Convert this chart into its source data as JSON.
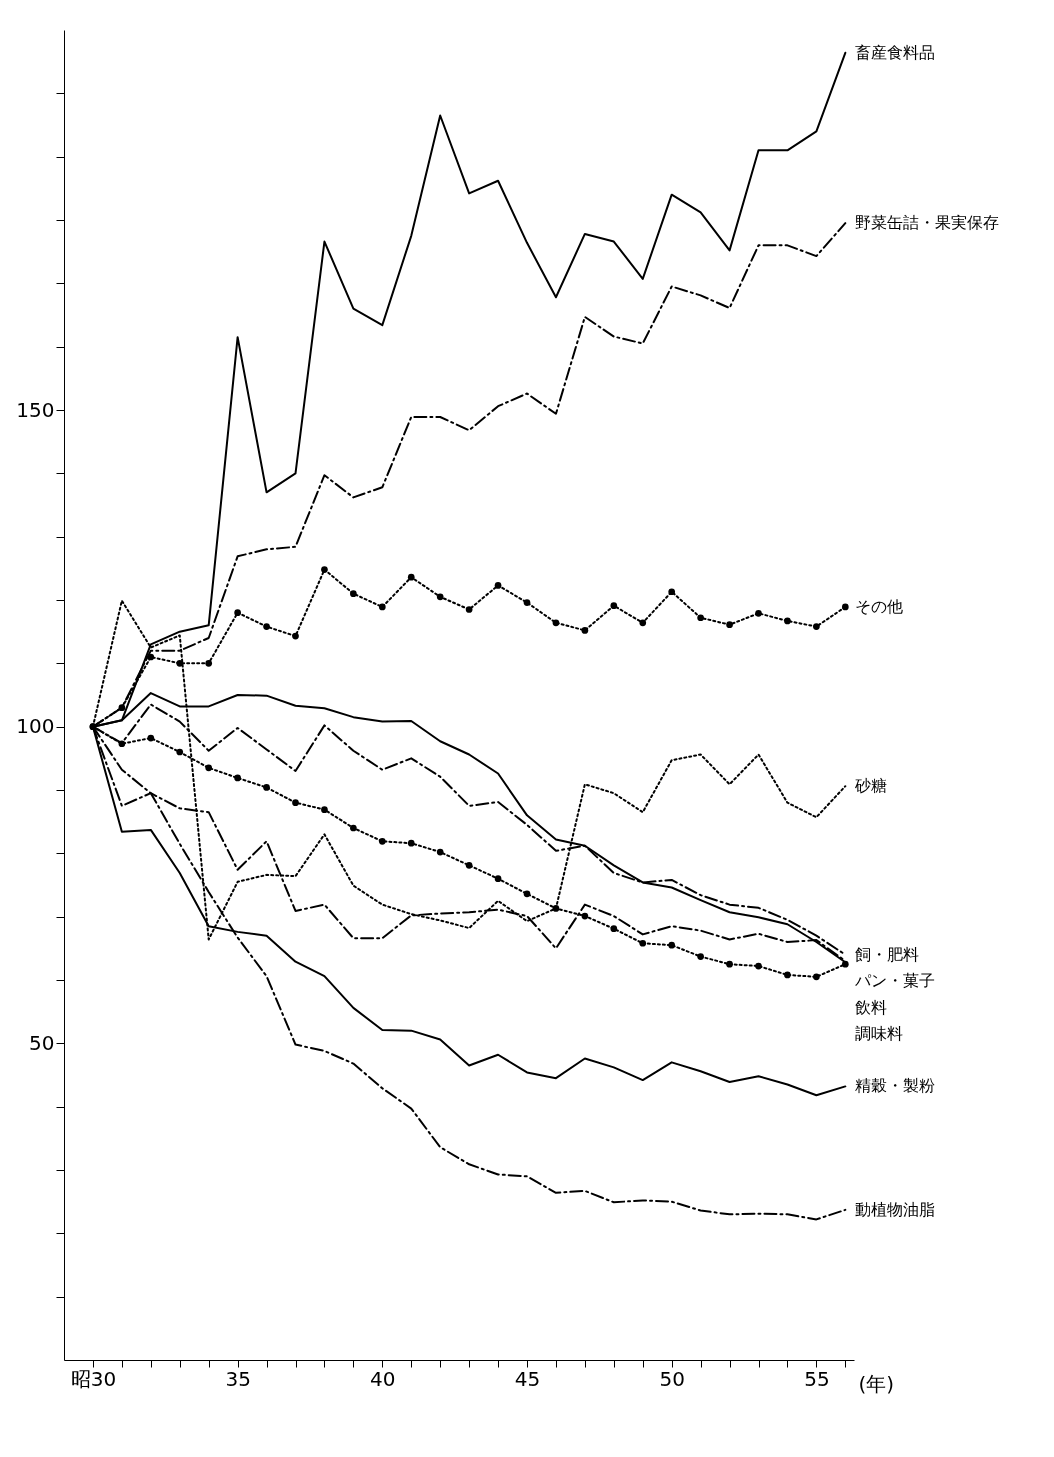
{
  "chart_data": {
    "type": "line",
    "xlabel": "(年)",
    "x": [
      30,
      31,
      32,
      33,
      34,
      35,
      36,
      37,
      38,
      39,
      40,
      41,
      42,
      43,
      44,
      45,
      46,
      47,
      48,
      49,
      50,
      51,
      52,
      53,
      54,
      55,
      56
    ],
    "xlim": [
      29,
      56.3
    ],
    "xticks": [
      {
        "value": 30,
        "label": "昭30"
      },
      {
        "value": 31,
        "label": null
      },
      {
        "value": 32,
        "label": null
      },
      {
        "value": 33,
        "label": null
      },
      {
        "value": 34,
        "label": null
      },
      35,
      {
        "value": 36,
        "label": null
      },
      {
        "value": 37,
        "label": null
      },
      {
        "value": 38,
        "label": null
      },
      {
        "value": 39,
        "label": null
      },
      40,
      {
        "value": 41,
        "label": null
      },
      {
        "value": 42,
        "label": null
      },
      {
        "value": 43,
        "label": null
      },
      {
        "value": 44,
        "label": null
      },
      45,
      {
        "value": 46,
        "label": null
      },
      {
        "value": 47,
        "label": null
      },
      {
        "value": 48,
        "label": null
      },
      {
        "value": 49,
        "label": null
      },
      50,
      {
        "value": 51,
        "label": null
      },
      {
        "value": 52,
        "label": null
      },
      {
        "value": 53,
        "label": null
      },
      {
        "value": 54,
        "label": null
      },
      55,
      {
        "value": 56,
        "label": null
      }
    ],
    "ylim": [
      0,
      210
    ],
    "yticks": [
      {
        "value": 10,
        "label": null
      },
      {
        "value": 20,
        "label": null
      },
      {
        "value": 30,
        "label": null
      },
      {
        "value": 40,
        "label": null
      },
      50,
      {
        "value": 60,
        "label": null
      },
      {
        "value": 70,
        "label": null
      },
      {
        "value": 80,
        "label": null
      },
      {
        "value": 90,
        "label": null
      },
      100,
      {
        "value": 110,
        "label": null
      },
      {
        "value": 120,
        "label": null
      },
      {
        "value": 130,
        "label": null
      },
      {
        "value": 140,
        "label": null
      },
      150,
      {
        "value": 160,
        "label": null
      },
      {
        "value": 170,
        "label": null
      },
      {
        "value": 180,
        "label": null
      },
      {
        "value": 190,
        "label": null
      },
      {
        "value": 200,
        "label": null
      }
    ],
    "grid": false,
    "legend": false,
    "series": [
      {
        "name": "畜産食料品",
        "color": "#000000",
        "line_style": "solid",
        "marker": "none",
        "values": [
          100,
          101,
          113,
          115,
          116,
          161.5,
          137,
          140,
          176.6,
          166,
          163.4,
          177.5,
          196.5,
          184.2,
          186.2,
          176.4,
          167.8,
          177.8,
          176.6,
          170.7,
          184,
          181.2,
          175.2,
          191,
          191,
          194,
          206.4
        ]
      },
      {
        "name": "野菜缶詰・果実保存",
        "color": "#000000",
        "line_style": "dashed",
        "marker": "none",
        "values": [
          100,
          103,
          112,
          112,
          114,
          126.9,
          128,
          128.4,
          139.7,
          136.2,
          137.8,
          148.9,
          148.9,
          146.8,
          150.6,
          152.6,
          149.4,
          164.7,
          161.6,
          160.5,
          169.5,
          168.1,
          166.1,
          176,
          176,
          174.3,
          179.5
        ]
      },
      {
        "name": "その他",
        "color": "#000000",
        "line_style": "dotted",
        "marker": "circle",
        "values": [
          100,
          103,
          111,
          110,
          110,
          118,
          115.8,
          114.3,
          124.8,
          121,
          118.9,
          123.6,
          120.5,
          118.5,
          122.3,
          119.6,
          116.4,
          115.2,
          119.1,
          116.4,
          121.3,
          117.2,
          116.1,
          117.9,
          116.7,
          115.8,
          118.9
        ]
      },
      {
        "name": "砂糖",
        "color": "#000000",
        "line_style": "dotted",
        "marker": "none",
        "values": [
          100,
          119.9,
          112.5,
          114.4,
          66.4,
          75.5,
          76.6,
          76.4,
          83,
          74.9,
          71.9,
          70.4,
          69.4,
          68.2,
          72.5,
          69.3,
          71.3,
          90.9,
          89.5,
          86.5,
          94.7,
          95.6,
          90.9,
          95.6,
          88,
          85.7,
          90.6
        ]
      },
      {
        "name": "飼・肥料",
        "color": "#000000",
        "line_style": "dashed",
        "marker": "none",
        "values": [
          100,
          97.4,
          103.5,
          100.8,
          96.2,
          99.8,
          96.4,
          93,
          100.2,
          96.2,
          93.2,
          95,
          92.1,
          87.5,
          88.1,
          84.5,
          80.4,
          81.2,
          76.9,
          75.4,
          75.8,
          73.4,
          71.9,
          71.4,
          69.5,
          67,
          64
        ]
      },
      {
        "name": "パン・菓子",
        "color": "#000000",
        "line_style": "dashed",
        "marker": "none",
        "values": [
          100,
          87.5,
          89.5,
          87.1,
          86.5,
          77.4,
          81.9,
          70.9,
          71.9,
          66.6,
          66.6,
          70.2,
          70.5,
          70.7,
          71.1,
          70.1,
          65,
          71.9,
          70.1,
          67.2,
          68.5,
          67.8,
          66.4,
          67.3,
          66,
          66.3,
          63
        ]
      },
      {
        "name": "飲料",
        "color": "#000000",
        "line_style": "solid",
        "marker": "none",
        "values": [
          100,
          101,
          105.3,
          103.2,
          103.2,
          105,
          104.9,
          103.3,
          102.9,
          101.5,
          100.8,
          100.9,
          97.7,
          95.6,
          92.6,
          86,
          82.2,
          81.2,
          78.1,
          75.4,
          74.6,
          72.6,
          70.7,
          69.9,
          68.8,
          66,
          62.8
        ]
      },
      {
        "name": "調味料",
        "color": "#000000",
        "line_style": "dotted",
        "marker": "circle",
        "values": [
          100,
          97.3,
          98.2,
          96,
          93.5,
          91.9,
          90.4,
          88,
          86.9,
          84,
          81.9,
          81.6,
          80.2,
          78.1,
          76,
          73.6,
          71.3,
          70.1,
          68.1,
          65.8,
          65.5,
          63.7,
          62.5,
          62.2,
          60.8,
          60.5,
          62.5
        ]
      },
      {
        "name": "精穀・製粉",
        "color": "#000000",
        "line_style": "solid",
        "marker": "none",
        "values": [
          100,
          83.4,
          83.7,
          76.9,
          68.5,
          67.6,
          67,
          62.9,
          60.6,
          55.6,
          52.1,
          52,
          50.6,
          46.5,
          48.2,
          45.4,
          44.5,
          47.6,
          46.2,
          44.2,
          47,
          45.6,
          43.9,
          44.8,
          43.5,
          41.8,
          43.2
        ]
      },
      {
        "name": "動植物油脂",
        "color": "#000000",
        "line_style": "dashed",
        "marker": "none",
        "values": [
          100,
          93.2,
          89.5,
          81.5,
          73.9,
          66.7,
          60.6,
          49.8,
          48.8,
          46.8,
          42.9,
          39.7,
          33.6,
          30.9,
          29.3,
          29,
          26.4,
          26.7,
          24.9,
          25.2,
          25,
          23.6,
          23,
          23.1,
          23,
          22.2,
          23.7
        ]
      }
    ]
  }
}
